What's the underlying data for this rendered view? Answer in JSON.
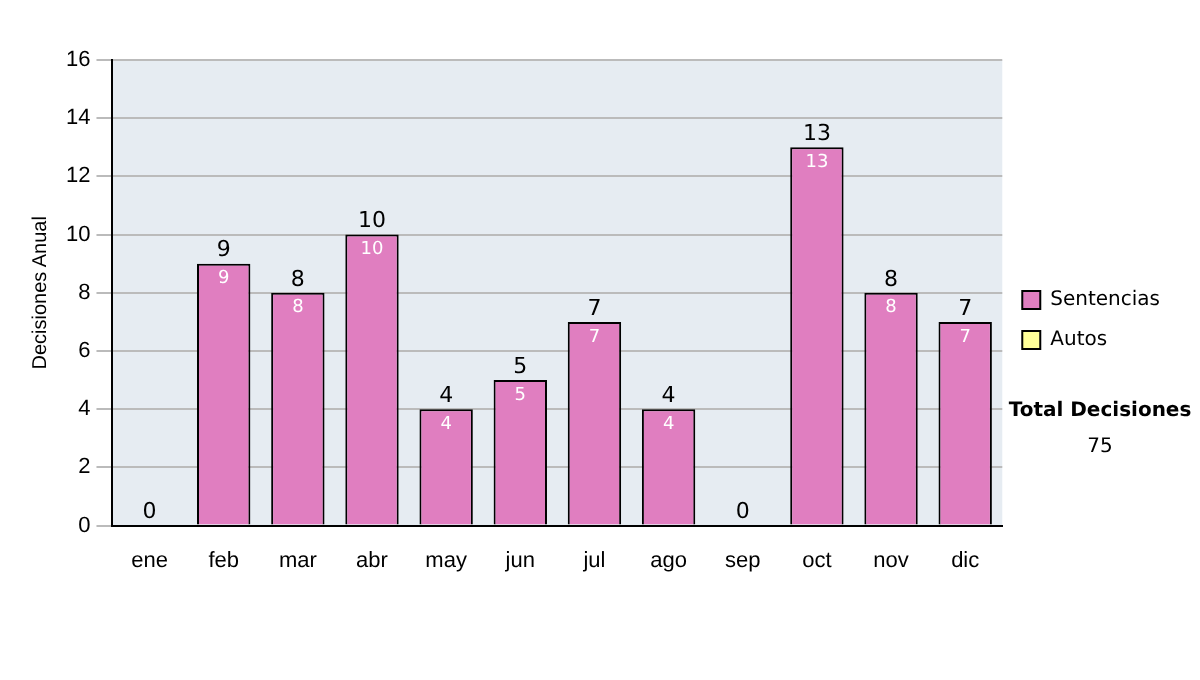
{
  "chart_data": {
    "type": "bar",
    "stacked": true,
    "ylabel": "Decisiones Anual",
    "categories": [
      "ene",
      "feb",
      "mar",
      "abr",
      "may",
      "jun",
      "jul",
      "ago",
      "sep",
      "oct",
      "nov",
      "dic"
    ],
    "series": [
      {
        "name": "Sentencias",
        "color": "#e07ec0",
        "values": [
          0,
          9,
          8,
          10,
          4,
          5,
          7,
          4,
          0,
          13,
          8,
          7
        ],
        "value_labels": [
          null,
          "9",
          "8",
          "10",
          "4",
          "5",
          "7",
          "4",
          null,
          "13",
          "8",
          "7"
        ]
      },
      {
        "name": "Autos",
        "color": "#ffff99",
        "values": [
          0,
          0,
          0,
          0,
          0,
          0,
          0,
          0,
          0,
          0,
          0,
          0
        ]
      }
    ],
    "totals": [
      "0",
      "9",
      "8",
      "10",
      "4",
      "5",
      "7",
      "4",
      "0",
      "13",
      "8",
      "7"
    ],
    "ylim": [
      0,
      16
    ],
    "yticks": [
      0,
      2,
      4,
      6,
      8,
      10,
      12,
      14,
      16
    ],
    "grid": "y",
    "legend": "right",
    "annotations": [
      "Total Decisiones",
      "75"
    ]
  }
}
